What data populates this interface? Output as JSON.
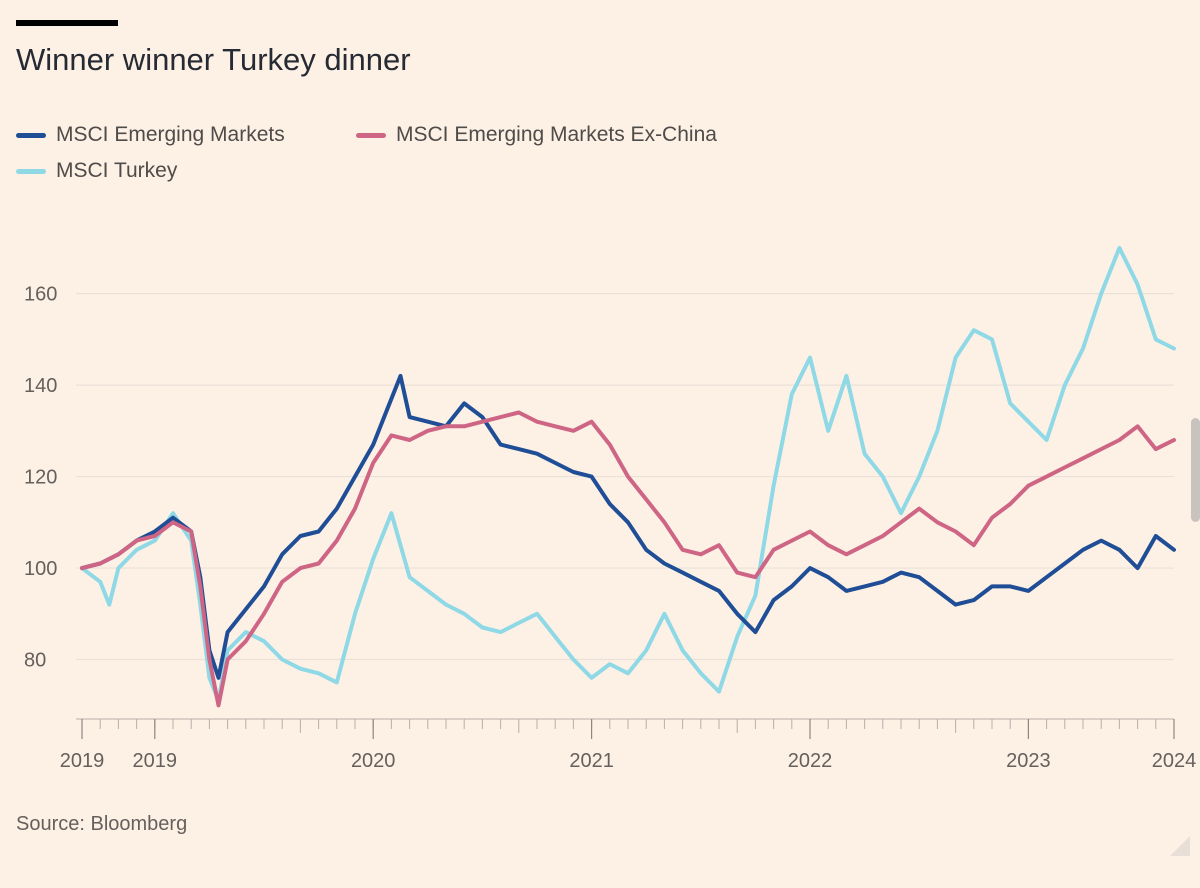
{
  "title": "Winner winner Turkey dinner",
  "source": "Source: Bloomberg",
  "legend": [
    {
      "label": "MSCI Emerging Markets",
      "color": "#1f4e96"
    },
    {
      "label": "MSCI Emerging Markets Ex-China",
      "color": "#cf6584"
    },
    {
      "label": "MSCI Turkey",
      "color": "#8fd8e6"
    }
  ],
  "chart_data": {
    "type": "line",
    "title": "Winner winner Turkey dinner",
    "xlabel": "",
    "ylabel": "",
    "ylim": [
      67,
      175
    ],
    "y_ticks": [
      80,
      100,
      120,
      140,
      160
    ],
    "x_tick_labels": [
      "2019",
      "2019",
      "2020",
      "2021",
      "2022",
      "2023",
      "2024"
    ],
    "grid": true,
    "legend_position": "top-left",
    "x_axis_unit": "month offset from start",
    "x_range": [
      0,
      60
    ],
    "x_tick_positions": [
      0,
      4,
      16,
      28,
      40,
      52,
      60
    ],
    "series": [
      {
        "name": "MSCI Emerging Markets",
        "color": "#1f4e96",
        "points": [
          [
            0,
            100
          ],
          [
            1,
            101
          ],
          [
            2,
            103
          ],
          [
            3,
            106
          ],
          [
            4,
            108
          ],
          [
            5,
            111
          ],
          [
            6,
            108
          ],
          [
            6.5,
            98
          ],
          [
            7,
            82
          ],
          [
            7.5,
            76
          ],
          [
            8,
            86
          ],
          [
            9,
            91
          ],
          [
            10,
            96
          ],
          [
            11,
            103
          ],
          [
            12,
            107
          ],
          [
            13,
            108
          ],
          [
            14,
            113
          ],
          [
            15,
            120
          ],
          [
            16,
            127
          ],
          [
            17,
            137
          ],
          [
            17.5,
            142
          ],
          [
            18,
            133
          ],
          [
            19,
            132
          ],
          [
            20,
            131
          ],
          [
            21,
            136
          ],
          [
            22,
            133
          ],
          [
            23,
            127
          ],
          [
            24,
            126
          ],
          [
            25,
            125
          ],
          [
            26,
            123
          ],
          [
            27,
            121
          ],
          [
            28,
            120
          ],
          [
            29,
            114
          ],
          [
            30,
            110
          ],
          [
            31,
            104
          ],
          [
            32,
            101
          ],
          [
            33,
            99
          ],
          [
            34,
            97
          ],
          [
            35,
            95
          ],
          [
            36,
            90
          ],
          [
            37,
            86
          ],
          [
            38,
            93
          ],
          [
            39,
            96
          ],
          [
            40,
            100
          ],
          [
            41,
            98
          ],
          [
            42,
            95
          ],
          [
            43,
            96
          ],
          [
            44,
            97
          ],
          [
            45,
            99
          ],
          [
            46,
            98
          ],
          [
            47,
            95
          ],
          [
            48,
            92
          ],
          [
            49,
            93
          ],
          [
            50,
            96
          ],
          [
            51,
            96
          ],
          [
            52,
            95
          ],
          [
            53,
            98
          ],
          [
            54,
            101
          ],
          [
            55,
            104
          ],
          [
            56,
            106
          ],
          [
            57,
            104
          ],
          [
            58,
            100
          ],
          [
            59,
            107
          ],
          [
            60,
            104
          ]
        ]
      },
      {
        "name": "MSCI Emerging Markets Ex-China",
        "color": "#cf6584",
        "points": [
          [
            0,
            100
          ],
          [
            1,
            101
          ],
          [
            2,
            103
          ],
          [
            3,
            106
          ],
          [
            4,
            107
          ],
          [
            5,
            110
          ],
          [
            6,
            108
          ],
          [
            6.5,
            96
          ],
          [
            7,
            80
          ],
          [
            7.5,
            70
          ],
          [
            8,
            80
          ],
          [
            9,
            84
          ],
          [
            10,
            90
          ],
          [
            11,
            97
          ],
          [
            12,
            100
          ],
          [
            13,
            101
          ],
          [
            14,
            106
          ],
          [
            15,
            113
          ],
          [
            16,
            123
          ],
          [
            17,
            129
          ],
          [
            18,
            128
          ],
          [
            19,
            130
          ],
          [
            20,
            131
          ],
          [
            21,
            131
          ],
          [
            22,
            132
          ],
          [
            23,
            133
          ],
          [
            24,
            134
          ],
          [
            25,
            132
          ],
          [
            26,
            131
          ],
          [
            27,
            130
          ],
          [
            28,
            132
          ],
          [
            29,
            127
          ],
          [
            30,
            120
          ],
          [
            31,
            115
          ],
          [
            32,
            110
          ],
          [
            33,
            104
          ],
          [
            34,
            103
          ],
          [
            35,
            105
          ],
          [
            36,
            99
          ],
          [
            37,
            98
          ],
          [
            38,
            104
          ],
          [
            39,
            106
          ],
          [
            40,
            108
          ],
          [
            41,
            105
          ],
          [
            42,
            103
          ],
          [
            43,
            105
          ],
          [
            44,
            107
          ],
          [
            45,
            110
          ],
          [
            46,
            113
          ],
          [
            47,
            110
          ],
          [
            48,
            108
          ],
          [
            49,
            105
          ],
          [
            50,
            111
          ],
          [
            51,
            114
          ],
          [
            52,
            118
          ],
          [
            53,
            120
          ],
          [
            54,
            122
          ],
          [
            55,
            124
          ],
          [
            56,
            126
          ],
          [
            57,
            128
          ],
          [
            58,
            131
          ],
          [
            59,
            126
          ],
          [
            60,
            128
          ]
        ]
      },
      {
        "name": "MSCI Turkey",
        "color": "#8fd8e6",
        "points": [
          [
            0,
            100
          ],
          [
            1,
            97
          ],
          [
            1.5,
            92
          ],
          [
            2,
            100
          ],
          [
            3,
            104
          ],
          [
            4,
            106
          ],
          [
            5,
            112
          ],
          [
            6,
            106
          ],
          [
            6.5,
            92
          ],
          [
            7,
            76
          ],
          [
            7.5,
            71
          ],
          [
            8,
            82
          ],
          [
            9,
            86
          ],
          [
            10,
            84
          ],
          [
            11,
            80
          ],
          [
            12,
            78
          ],
          [
            13,
            77
          ],
          [
            14,
            75
          ],
          [
            15,
            90
          ],
          [
            16,
            102
          ],
          [
            17,
            112
          ],
          [
            18,
            98
          ],
          [
            19,
            95
          ],
          [
            20,
            92
          ],
          [
            21,
            90
          ],
          [
            22,
            87
          ],
          [
            23,
            86
          ],
          [
            24,
            88
          ],
          [
            25,
            90
          ],
          [
            26,
            85
          ],
          [
            27,
            80
          ],
          [
            28,
            76
          ],
          [
            29,
            79
          ],
          [
            30,
            77
          ],
          [
            31,
            82
          ],
          [
            32,
            90
          ],
          [
            33,
            82
          ],
          [
            34,
            77
          ],
          [
            35,
            73
          ],
          [
            36,
            85
          ],
          [
            37,
            94
          ],
          [
            38,
            118
          ],
          [
            39,
            138
          ],
          [
            40,
            146
          ],
          [
            41,
            130
          ],
          [
            42,
            142
          ],
          [
            43,
            125
          ],
          [
            44,
            120
          ],
          [
            45,
            112
          ],
          [
            46,
            120
          ],
          [
            47,
            130
          ],
          [
            48,
            146
          ],
          [
            49,
            152
          ],
          [
            50,
            150
          ],
          [
            51,
            136
          ],
          [
            52,
            132
          ],
          [
            53,
            128
          ],
          [
            54,
            140
          ],
          [
            55,
            148
          ],
          [
            56,
            160
          ],
          [
            57,
            170
          ],
          [
            58,
            162
          ],
          [
            59,
            150
          ],
          [
            60,
            148
          ]
        ]
      }
    ]
  }
}
